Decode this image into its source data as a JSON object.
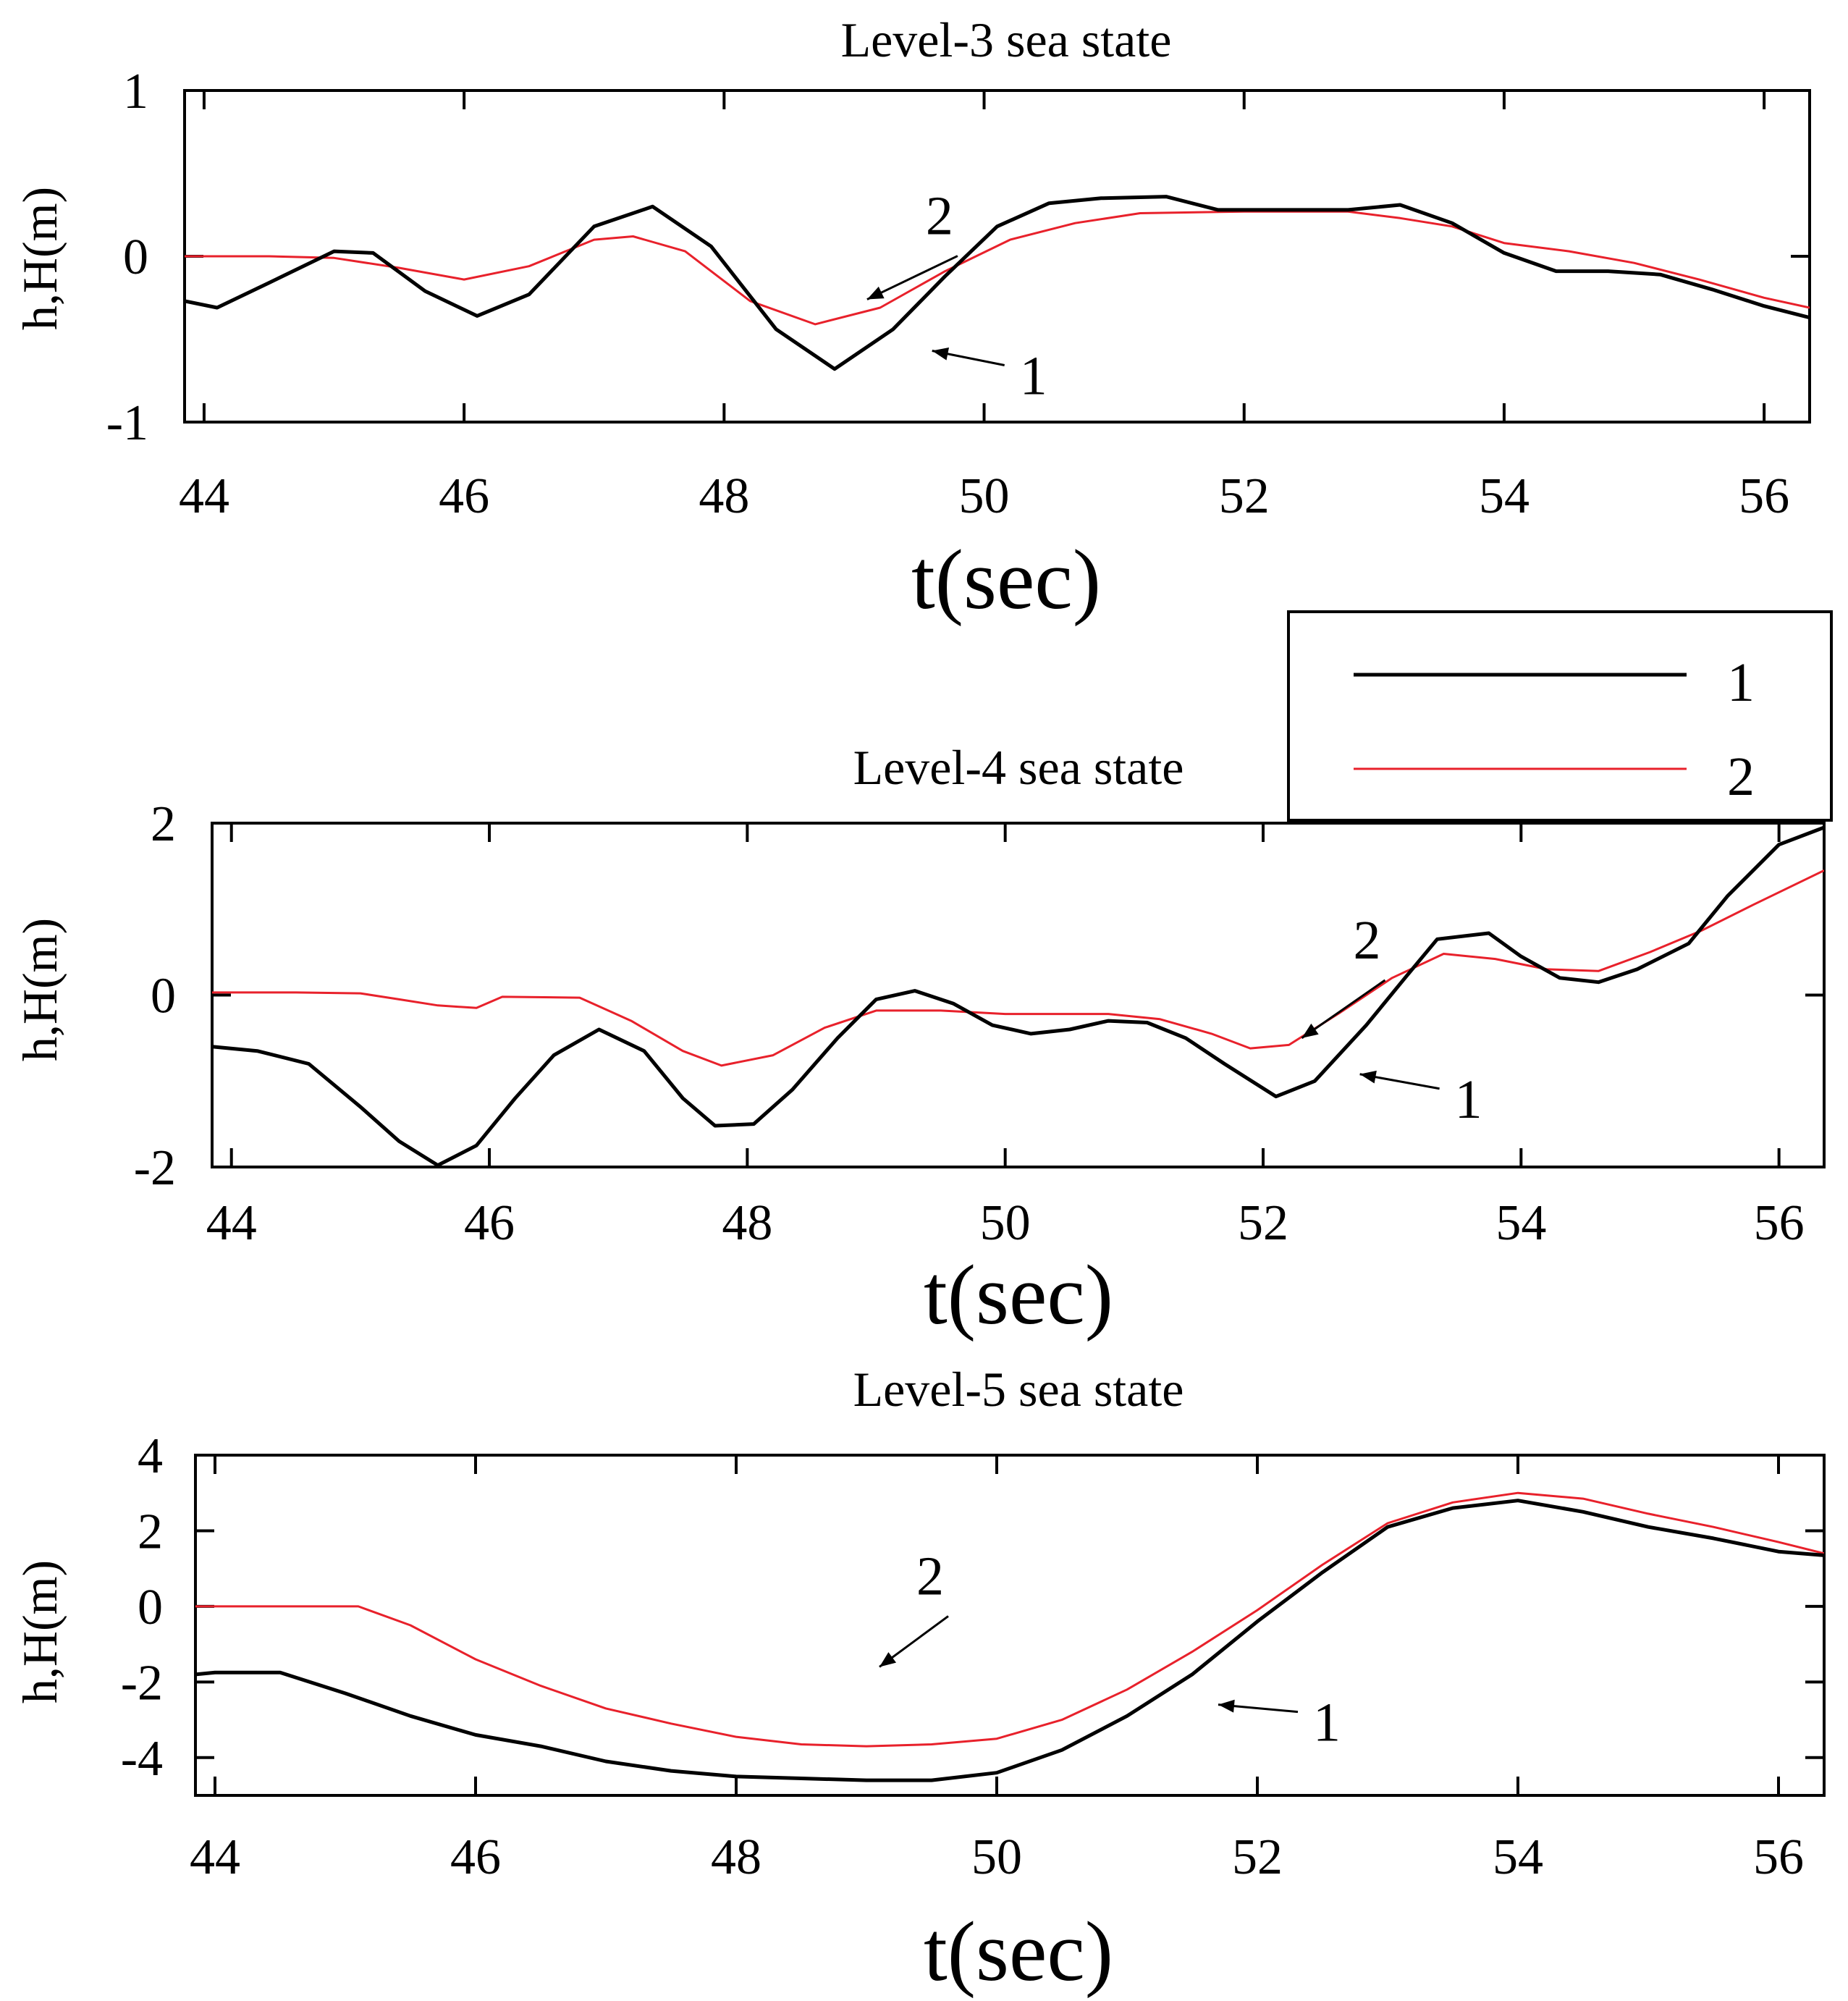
{
  "colors": {
    "series1": "#000000",
    "series2": "#e8212b",
    "axis": "#000000"
  },
  "legend": {
    "entries": [
      {
        "label": "1",
        "color": "#000000"
      },
      {
        "label": "2",
        "color": "#e8212b"
      }
    ]
  },
  "chart_data": [
    {
      "type": "line",
      "title": "Level-3 sea state",
      "xlabel": "t(sec)",
      "ylabel": "h,H(m)",
      "xlim": [
        43.85,
        56.35
      ],
      "ylim": [
        -1,
        1
      ],
      "xticks": [
        44,
        46,
        48,
        50,
        52,
        54,
        56
      ],
      "yticks": [
        -1,
        0,
        1
      ],
      "annotations": [
        {
          "text": "1",
          "series": "1",
          "x": 49.6,
          "y": -0.57
        },
        {
          "text": "2",
          "series": "2",
          "x": 49.1,
          "y": -0.26
        }
      ],
      "series": [
        {
          "name": "1",
          "color": "#000000",
          "x": [
            43.85,
            44.1,
            44.5,
            45.0,
            45.3,
            45.7,
            46.1,
            46.5,
            47.0,
            47.45,
            47.9,
            48.4,
            48.85,
            49.3,
            49.7,
            50.1,
            50.5,
            50.9,
            51.4,
            51.8,
            52.3,
            52.8,
            53.2,
            53.6,
            54.0,
            54.4,
            54.8,
            55.2,
            55.6,
            56.0,
            56.35
          ],
          "y": [
            -0.27,
            -0.31,
            -0.16,
            0.03,
            0.02,
            -0.21,
            -0.36,
            -0.23,
            0.18,
            0.3,
            0.06,
            -0.44,
            -0.68,
            -0.44,
            -0.12,
            0.18,
            0.32,
            0.35,
            0.36,
            0.28,
            0.28,
            0.28,
            0.31,
            0.2,
            0.02,
            -0.09,
            -0.09,
            -0.11,
            -0.2,
            -0.3,
            -0.37
          ]
        },
        {
          "name": "2",
          "color": "#e8212b",
          "x": [
            43.85,
            44.5,
            45.0,
            45.5,
            46.0,
            46.5,
            47.0,
            47.3,
            47.7,
            48.2,
            48.7,
            49.2,
            49.7,
            50.2,
            50.7,
            51.2,
            52.0,
            52.8,
            53.2,
            53.6,
            54.0,
            54.5,
            55.0,
            55.5,
            56.0,
            56.35
          ],
          "y": [
            0.0,
            0.0,
            -0.01,
            -0.07,
            -0.14,
            -0.06,
            0.1,
            0.12,
            0.03,
            -0.27,
            -0.41,
            -0.31,
            -0.09,
            0.1,
            0.2,
            0.26,
            0.27,
            0.27,
            0.23,
            0.18,
            0.08,
            0.03,
            -0.04,
            -0.14,
            -0.25,
            -0.31
          ]
        }
      ]
    },
    {
      "type": "line",
      "title": "Level-4 sea state",
      "xlabel": "t(sec)",
      "ylabel": "h,H(m)",
      "xlim": [
        43.85,
        56.35
      ],
      "ylim": [
        -2,
        2
      ],
      "xticks": [
        44,
        46,
        48,
        50,
        52,
        54,
        56
      ],
      "yticks": [
        -2,
        0,
        2
      ],
      "annotations": [
        {
          "text": "1",
          "series": "1",
          "x": 52.75,
          "y": -0.92
        },
        {
          "text": "2",
          "series": "2",
          "x": 52.3,
          "y": -0.5
        }
      ],
      "series": [
        {
          "name": "1",
          "color": "#000000",
          "x": [
            43.85,
            44.2,
            44.6,
            45.0,
            45.3,
            45.6,
            45.9,
            46.2,
            46.5,
            46.85,
            47.2,
            47.5,
            47.75,
            48.05,
            48.35,
            48.7,
            49.0,
            49.3,
            49.6,
            49.9,
            50.2,
            50.5,
            50.8,
            51.1,
            51.4,
            51.7,
            52.1,
            52.4,
            52.8,
            53.1,
            53.35,
            53.75,
            54.0,
            54.3,
            54.6,
            54.9,
            55.3,
            55.6,
            56.0,
            56.35
          ],
          "y": [
            -0.6,
            -0.65,
            -0.8,
            -1.3,
            -1.7,
            -1.98,
            -1.75,
            -1.2,
            -0.7,
            -0.4,
            -0.65,
            -1.2,
            -1.52,
            -1.5,
            -1.1,
            -0.5,
            -0.05,
            0.05,
            -0.1,
            -0.35,
            -0.45,
            -0.4,
            -0.3,
            -0.32,
            -0.5,
            -0.8,
            -1.18,
            -1.0,
            -0.35,
            0.2,
            0.65,
            0.72,
            0.45,
            0.2,
            0.15,
            0.3,
            0.6,
            1.15,
            1.75,
            1.95
          ]
        },
        {
          "name": "2",
          "color": "#e8212b",
          "x": [
            43.85,
            44.5,
            45.0,
            45.3,
            45.6,
            45.9,
            46.1,
            46.7,
            47.1,
            47.5,
            47.8,
            48.2,
            48.6,
            49.0,
            49.5,
            50.0,
            50.5,
            50.8,
            51.2,
            51.6,
            51.9,
            52.2,
            52.6,
            53.0,
            53.4,
            53.8,
            54.2,
            54.6,
            55.0,
            55.4,
            55.8,
            56.35
          ],
          "y": [
            0.03,
            0.03,
            0.02,
            -0.05,
            -0.12,
            -0.15,
            -0.02,
            -0.03,
            -0.3,
            -0.65,
            -0.82,
            -0.7,
            -0.38,
            -0.18,
            -0.18,
            -0.22,
            -0.22,
            -0.22,
            -0.28,
            -0.45,
            -0.62,
            -0.58,
            -0.2,
            0.2,
            0.48,
            0.42,
            0.3,
            0.28,
            0.5,
            0.75,
            1.05,
            1.45
          ]
        }
      ]
    },
    {
      "type": "line",
      "title": "Level-5 sea state",
      "xlabel": "t(sec)",
      "ylabel": "h,H(m)",
      "xlim": [
        43.85,
        56.35
      ],
      "ylim": [
        -5,
        4
      ],
      "xticks": [
        44,
        46,
        48,
        50,
        52,
        54,
        56
      ],
      "yticks": [
        -4,
        -2,
        0,
        2,
        4
      ],
      "annotations": [
        {
          "text": "1",
          "series": "1",
          "x": 51.7,
          "y": -2.6
        },
        {
          "text": "2",
          "series": "2",
          "x": 49.1,
          "y": -1.6
        }
      ],
      "series": [
        {
          "name": "1",
          "color": "#000000",
          "x": [
            43.85,
            44.0,
            44.5,
            45.0,
            45.5,
            46.0,
            46.5,
            47.0,
            47.5,
            48.0,
            48.5,
            49.0,
            49.5,
            50.0,
            50.5,
            51.0,
            51.5,
            52.0,
            52.5,
            53.0,
            53.5,
            54.0,
            54.5,
            55.0,
            55.5,
            56.0,
            56.35
          ],
          "y": [
            -1.8,
            -1.75,
            -1.75,
            -2.3,
            -2.9,
            -3.4,
            -3.7,
            -4.1,
            -4.35,
            -4.5,
            -4.55,
            -4.6,
            -4.6,
            -4.4,
            -3.8,
            -2.9,
            -1.8,
            -0.4,
            0.9,
            2.1,
            2.6,
            2.8,
            2.5,
            2.1,
            1.8,
            1.45,
            1.35
          ]
        },
        {
          "name": "2",
          "color": "#e8212b",
          "x": [
            43.85,
            44.5,
            45.1,
            45.5,
            46.0,
            46.5,
            47.0,
            47.5,
            48.0,
            48.5,
            49.0,
            49.5,
            50.0,
            50.5,
            51.0,
            51.5,
            52.0,
            52.5,
            53.0,
            53.5,
            54.0,
            54.5,
            55.0,
            55.5,
            56.0,
            56.35
          ],
          "y": [
            0.0,
            0.0,
            0.0,
            -0.5,
            -1.4,
            -2.1,
            -2.7,
            -3.1,
            -3.45,
            -3.65,
            -3.7,
            -3.65,
            -3.5,
            -3.0,
            -2.2,
            -1.2,
            -0.1,
            1.1,
            2.2,
            2.75,
            3.0,
            2.85,
            2.45,
            2.1,
            1.7,
            1.4
          ]
        }
      ]
    }
  ]
}
